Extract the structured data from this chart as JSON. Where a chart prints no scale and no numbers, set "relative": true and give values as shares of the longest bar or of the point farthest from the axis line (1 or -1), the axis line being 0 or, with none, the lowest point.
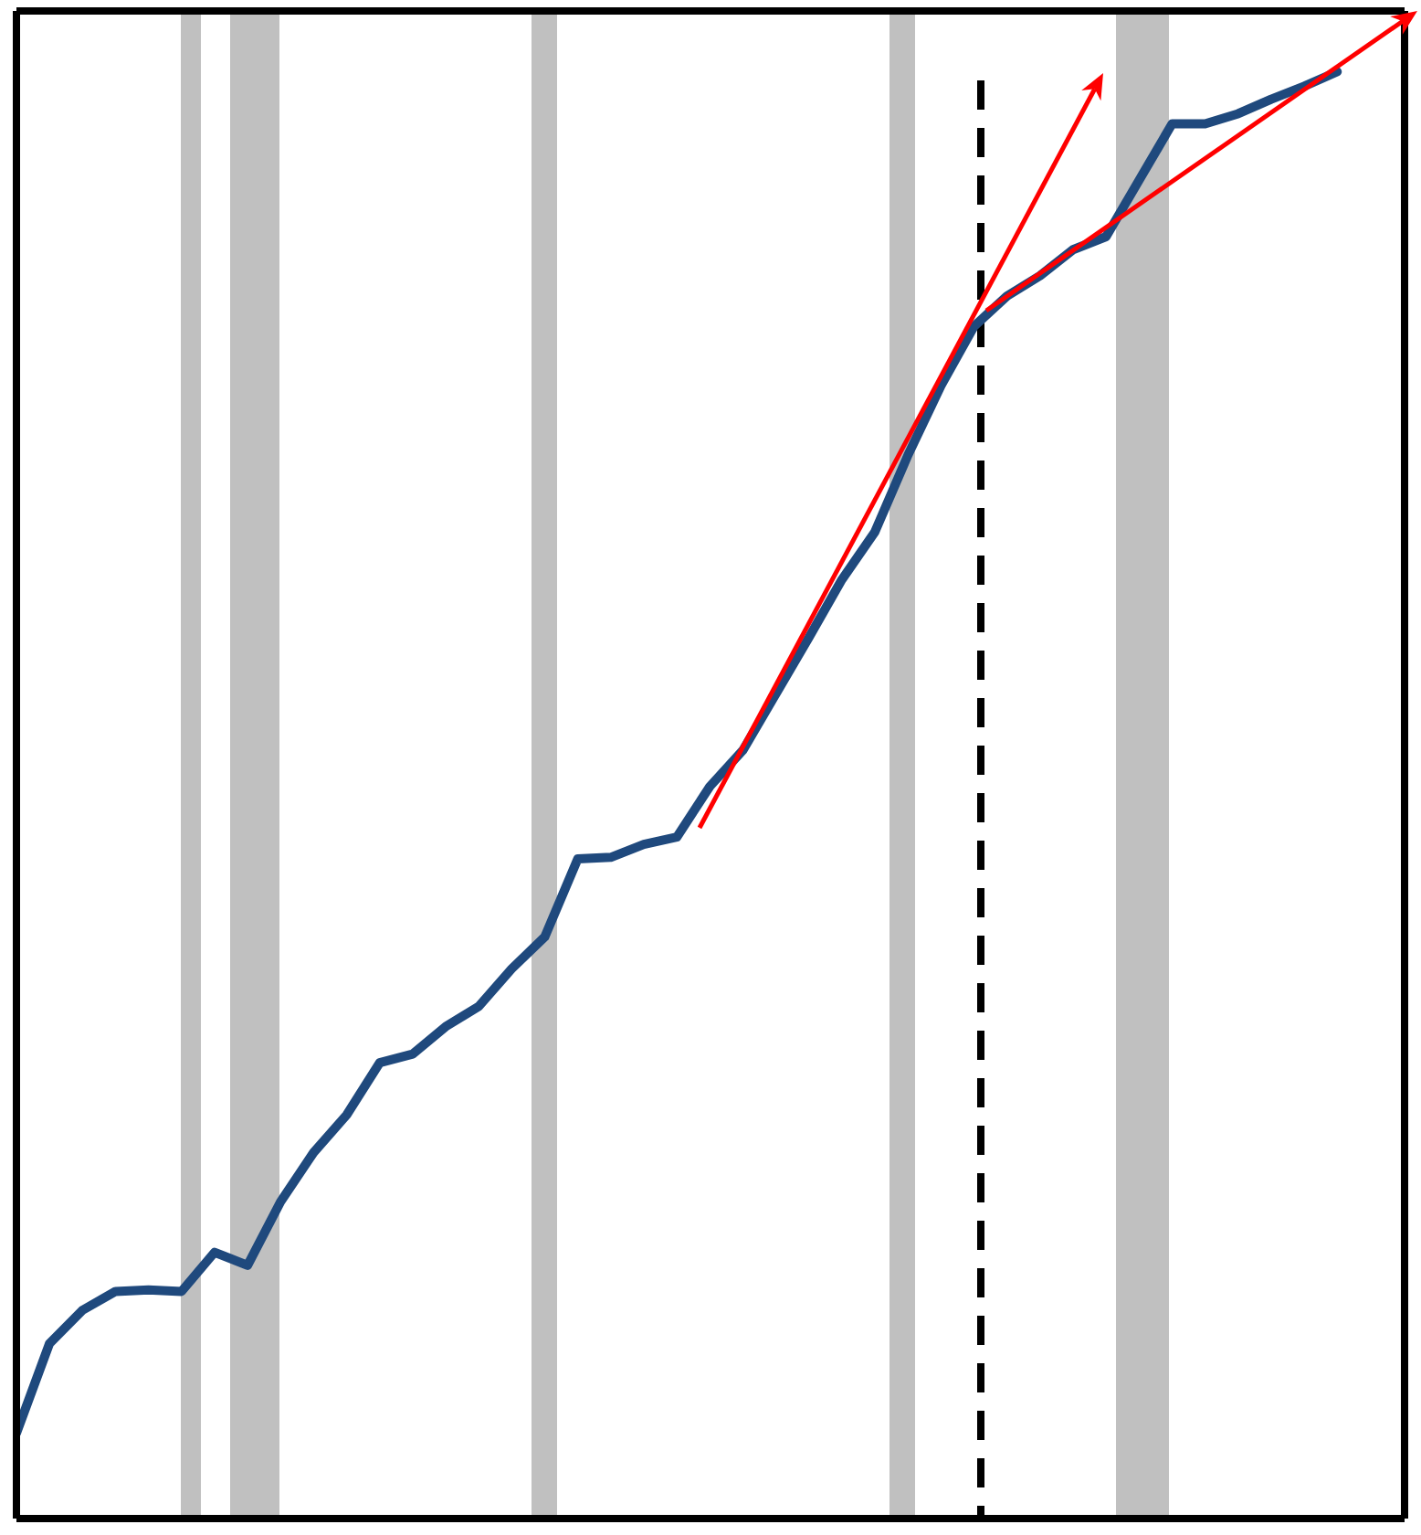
{
  "chart_data": {
    "type": "line",
    "relative": true,
    "legend": false,
    "marker": "none",
    "line_style": "solid",
    "categories": [
      null,
      null,
      null,
      null,
      null,
      null,
      null,
      null,
      null,
      null,
      null,
      null,
      null,
      null,
      null,
      null,
      null,
      null,
      null,
      null,
      null,
      null,
      null,
      null,
      null,
      null,
      null,
      null,
      null,
      null,
      null,
      null,
      null,
      null,
      null,
      null,
      null,
      null,
      null,
      null,
      null
    ],
    "series": [
      {
        "color": "#1f497d",
        "values": [
          0.059,
          0.121,
          0.144,
          0.157,
          0.158,
          0.157,
          0.184,
          0.175,
          0.219,
          0.253,
          0.279,
          0.315,
          0.321,
          0.34,
          0.354,
          0.38,
          0.402,
          0.456,
          0.457,
          0.466,
          0.471,
          0.506,
          0.531,
          0.57,
          0.609,
          0.649,
          0.682,
          0.735,
          0.783,
          0.824,
          0.845,
          0.859,
          0.877,
          0.886,
          0.925,
          0.964,
          0.964,
          0.971,
          0.981,
          0.99,
          1
        ]
      }
    ]
  }
}
